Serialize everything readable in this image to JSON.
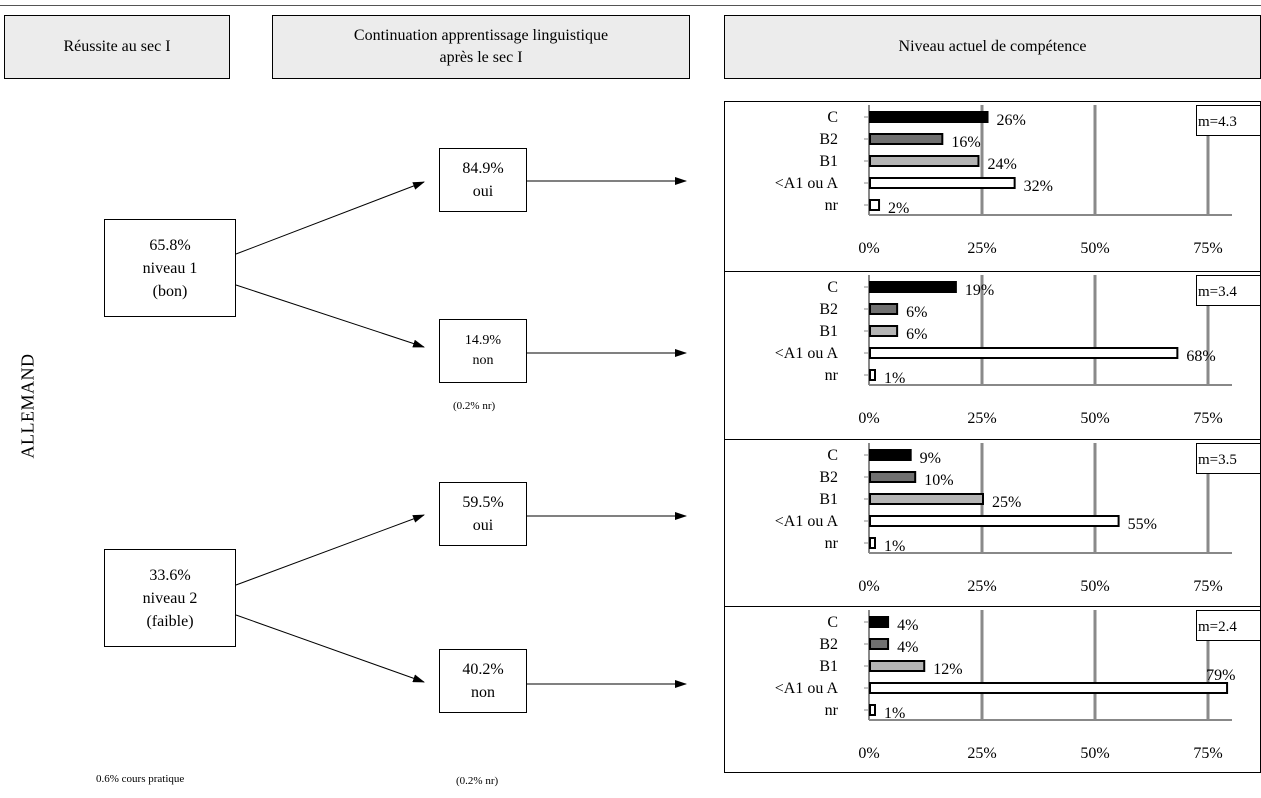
{
  "headers": {
    "col1": "Réussite au sec I",
    "col2_line1": "Continuation apprentissage linguistique",
    "col2_line2": "après le sec I",
    "col3": "Niveau actuel de compétence"
  },
  "side_label": "ALLEMAND",
  "level1": {
    "pct": "65.8%",
    "line2": "niveau 1",
    "line3": "(bon)"
  },
  "level2": {
    "pct": "33.6%",
    "line2": "niveau 2",
    "line3": "(faible)"
  },
  "cont": [
    {
      "pct": "84.9%",
      "label": "oui"
    },
    {
      "pct": "14.9%",
      "label": "non"
    },
    {
      "pct": "59.5%",
      "label": "oui"
    },
    {
      "pct": "40.2%",
      "label": "non"
    }
  ],
  "notes": {
    "nr1": "(0.2% nr)",
    "nr2": "(0.2% nr)",
    "practical": "0.6% cours pratique"
  },
  "colors": {
    "C": "#000000",
    "B2": "#707070",
    "B1": "#b4b4b4",
    "A": "#ffffff",
    "nr": "#ffffff",
    "grid": "#8a8a8a"
  },
  "chart_data": [
    {
      "type": "bar",
      "orientation": "horizontal",
      "categories": [
        "C",
        "B2",
        "B1",
        "<A1 ou  A",
        "nr"
      ],
      "values": [
        26,
        16,
        24,
        32,
        2
      ],
      "labels": [
        "26%",
        "16%",
        "24%",
        "32%",
        "2%"
      ],
      "xticks": [
        "0%",
        "25%",
        "50%",
        "75%"
      ],
      "xlim": [
        0,
        80
      ],
      "mean": "m=4.3",
      "grid": true
    },
    {
      "type": "bar",
      "orientation": "horizontal",
      "categories": [
        "C",
        "B2",
        "B1",
        "<A1 ou  A",
        "nr"
      ],
      "values": [
        19,
        6,
        6,
        68,
        1
      ],
      "labels": [
        "19%",
        "6%",
        "6%",
        "68%",
        "1%"
      ],
      "xticks": [
        "0%",
        "25%",
        "50%",
        "75%"
      ],
      "xlim": [
        0,
        80
      ],
      "mean": "m=3.4",
      "grid": true
    },
    {
      "type": "bar",
      "orientation": "horizontal",
      "categories": [
        "C",
        "B2",
        "B1",
        "<A1 ou  A",
        "nr"
      ],
      "values": [
        9,
        10,
        25,
        55,
        1
      ],
      "labels": [
        "9%",
        "10%",
        "25%",
        "55%",
        "1%"
      ],
      "xticks": [
        "0%",
        "25%",
        "50%",
        "75%"
      ],
      "xlim": [
        0,
        80
      ],
      "mean": "m=3.5",
      "grid": true
    },
    {
      "type": "bar",
      "orientation": "horizontal",
      "categories": [
        "C",
        "B2",
        "B1",
        "<A1 ou  A",
        "nr"
      ],
      "values": [
        4,
        4,
        12,
        79,
        1
      ],
      "labels": [
        "4%",
        "4%",
        "12%",
        "79%",
        "1%"
      ],
      "xticks": [
        "0%",
        "25%",
        "50%",
        "75%"
      ],
      "xlim": [
        0,
        80
      ],
      "mean": "m=2.4",
      "grid": true
    }
  ]
}
